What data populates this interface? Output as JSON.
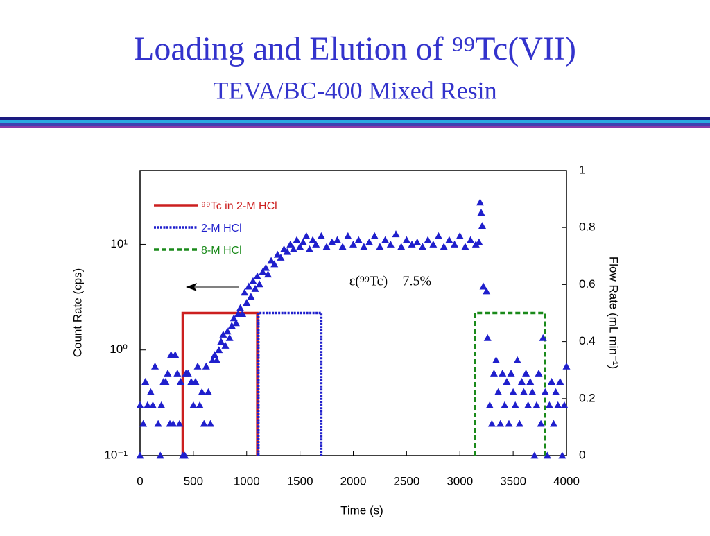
{
  "chart_data": {
    "type": "scatter",
    "title": "Loading and Elution of ⁹⁹Tc(VII)",
    "subtitle": "TEVA/BC-400 Mixed Resin",
    "x_label": "Time (s)",
    "y_label": "Count Rate (cps)",
    "y2_label": "Flow Rate (mL min⁻¹)",
    "annotation": "ε(⁹⁹Tc) = 7.5%",
    "yscale": "log",
    "color": "#1f1fcc",
    "marker": "triangle",
    "x": [
      0,
      0,
      30,
      50,
      70,
      100,
      120,
      140,
      170,
      190,
      200,
      220,
      240,
      260,
      280,
      290,
      310,
      330,
      350,
      370,
      380,
      400,
      420,
      430,
      450,
      480,
      500,
      520,
      540,
      560,
      580,
      600,
      620,
      640,
      660,
      680,
      700,
      720,
      740,
      760,
      780,
      800,
      820,
      840,
      860,
      880,
      900,
      920,
      940,
      960,
      980,
      1000,
      1020,
      1040,
      1060,
      1080,
      1100,
      1120,
      1150,
      1180,
      1200,
      1230,
      1260,
      1290,
      1320,
      1350,
      1380,
      1410,
      1440,
      1470,
      1500,
      1530,
      1560,
      1590,
      1620,
      1650,
      1700,
      1750,
      1800,
      1850,
      1900,
      1950,
      2000,
      2050,
      2100,
      2150,
      2200,
      2250,
      2300,
      2350,
      2400,
      2450,
      2500,
      2550,
      2600,
      2650,
      2700,
      2750,
      2800,
      2850,
      2900,
      2950,
      3000,
      3050,
      3100,
      3150,
      3180,
      3190,
      3200,
      3210,
      3220,
      3250,
      3260,
      3280,
      3300,
      3320,
      3340,
      3360,
      3380,
      3400,
      3420,
      3440,
      3460,
      3480,
      3500,
      3520,
      3540,
      3560,
      3580,
      3600,
      3620,
      3640,
      3660,
      3680,
      3700,
      3720,
      3740,
      3760,
      3780,
      3800,
      3820,
      3840,
      3860,
      3880,
      3900,
      3920,
      3940,
      3960,
      3980,
      4000
    ],
    "values": [
      0.3,
      0.1,
      0.2,
      0.5,
      0.3,
      0.4,
      0.3,
      0.7,
      0.2,
      0.1,
      0.3,
      0.5,
      0.5,
      0.6,
      0.2,
      0.9,
      0.2,
      0.9,
      0.6,
      0.2,
      0.5,
      0.1,
      0.1,
      0.6,
      0.6,
      0.5,
      0.3,
      0.5,
      0.7,
      0.3,
      0.4,
      0.2,
      0.7,
      0.4,
      0.2,
      0.8,
      0.9,
      0.8,
      1.0,
      1.2,
      1.4,
      1.1,
      1.5,
      1.3,
      1.7,
      2.0,
      1.8,
      2.2,
      2.5,
      2.2,
      3.5,
      2.8,
      4.0,
      3.2,
      4.5,
      3.8,
      5.0,
      4.2,
      5.5,
      6.0,
      5.2,
      7.0,
      6.5,
      8.0,
      7.5,
      9.0,
      8.5,
      10,
      9.0,
      11,
      9.5,
      10.5,
      12,
      9.0,
      11,
      10,
      12,
      9.5,
      10.5,
      11,
      9.5,
      12,
      10,
      11,
      9.5,
      10.5,
      12,
      9.5,
      11,
      10,
      12.5,
      9.5,
      11,
      10,
      10.5,
      9.5,
      11,
      10,
      12,
      9.5,
      11,
      10,
      12,
      9.5,
      11,
      10,
      10.5,
      25,
      20,
      15,
      4.0,
      3.6,
      1.3,
      0.3,
      0.2,
      0.6,
      0.8,
      0.4,
      0.2,
      0.6,
      0.3,
      0.5,
      0.2,
      0.6,
      0.4,
      0.3,
      0.8,
      0.2,
      0.5,
      0.4,
      0.6,
      0.3,
      0.5,
      0.4,
      0.1,
      0.3,
      0.6,
      0.2,
      1.3,
      0.4,
      0.1,
      0.3,
      0.5,
      0.2,
      0.4,
      0.3,
      0.5,
      0.1,
      0.3,
      0.7
    ],
    "series": [
      {
        "name": "⁹⁹Tc in 2-M HCl",
        "color": "#cc1f1f",
        "style": "solid",
        "axis": "y2",
        "x": [
          400,
          400,
          1100,
          1100
        ],
        "values": [
          0,
          0.5,
          0.5,
          0
        ]
      },
      {
        "name": "2-M HCl",
        "color": "#1f1fcc",
        "style": "dotted",
        "axis": "y2",
        "x": [
          1110,
          1110,
          1700,
          1700
        ],
        "values": [
          0,
          0.5,
          0.5,
          0
        ]
      },
      {
        "name": "8-M HCl",
        "color": "#1a8a1a",
        "style": "dashed",
        "axis": "y2",
        "x": [
          3140,
          3140,
          3800,
          3800
        ],
        "values": [
          0,
          0.5,
          0.5,
          0
        ]
      }
    ],
    "xlim": [
      0,
      4000
    ],
    "xticks": [
      0,
      500,
      1000,
      1500,
      2000,
      2500,
      3000,
      3500,
      4000
    ],
    "ylim": [
      0.1,
      50
    ],
    "yticks": [
      {
        "value": 0.1,
        "label": "10⁻¹"
      },
      {
        "value": 1,
        "label": "10⁰"
      },
      {
        "value": 10,
        "label": "10¹"
      }
    ],
    "y2lim": [
      0,
      1
    ],
    "y2ticks": [
      0,
      0.2,
      0.4,
      0.6,
      0.8,
      1
    ],
    "legend": "upper left"
  }
}
